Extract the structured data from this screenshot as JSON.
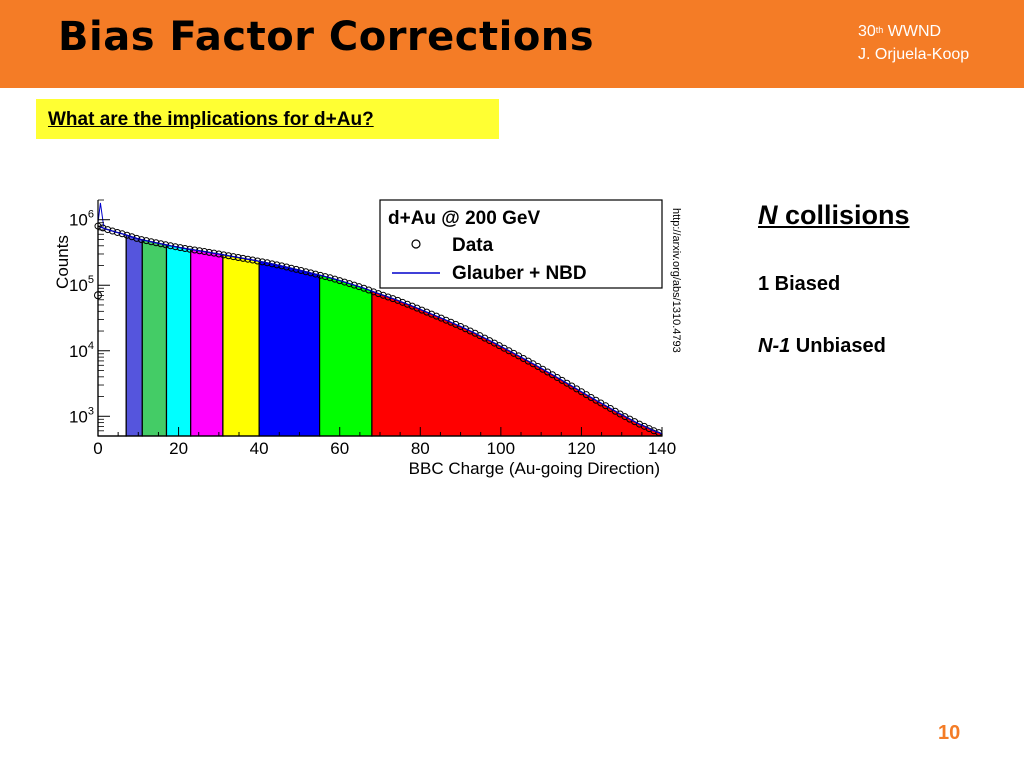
{
  "header": {
    "title": "Bias Factor Corrections",
    "conference_num": "30",
    "conference_sup": "th",
    "conference_name": "WWND",
    "author": "J. Orjuela-Koop"
  },
  "question": "What are the implications for d+Au?",
  "source_url": "http://arxiv.org/abs/1310.4793",
  "side": {
    "heading_italic": "N",
    "heading_rest": " collisions",
    "line1": "1 Biased",
    "line2_italic": "N-1",
    "line2_rest": " Unbiased"
  },
  "page_number": "10",
  "colors": {
    "header_bg": "#f47c26",
    "highlight": "#ffff33",
    "fit_line": "#0000cc"
  },
  "chart_data": {
    "type": "area",
    "legend": {
      "title": "d+Au @ 200 GeV",
      "entries": [
        "Data",
        "Glauber + NBD"
      ],
      "placement": "top-right"
    },
    "xlabel": "BBC Charge (Au-going Direction)",
    "ylabel": "Counts",
    "xlim": [
      0,
      140
    ],
    "ylim": [
      500,
      2000000
    ],
    "yscale": "log",
    "x_ticks": [
      0,
      20,
      40,
      60,
      80,
      100,
      120,
      140
    ],
    "y_ticks": [
      {
        "value": 1000,
        "base": "10",
        "exp": "3"
      },
      {
        "value": 10000,
        "base": "10",
        "exp": "4"
      },
      {
        "value": 100000,
        "base": "10",
        "exp": "5"
      },
      {
        "value": 1000000,
        "base": "10",
        "exp": "6"
      }
    ],
    "series": [
      {
        "x": [
          0,
          2,
          4,
          6,
          8,
          10,
          14,
          18,
          22,
          26,
          30,
          34,
          38,
          42,
          46,
          50,
          54,
          58,
          62,
          66,
          70,
          74,
          78,
          82,
          86,
          90,
          94,
          98,
          102,
          106,
          110,
          114,
          118,
          122,
          126,
          130,
          134,
          138,
          140
        ],
        "y": [
          800000,
          720000,
          660000,
          610000,
          560000,
          510000,
          450000,
          400000,
          360000,
          330000,
          300000,
          270000,
          245000,
          220000,
          195000,
          170000,
          148000,
          128000,
          108000,
          90000,
          73000,
          60000,
          48000,
          38000,
          30000,
          23500,
          18000,
          13500,
          10000,
          7400,
          5400,
          3900,
          2800,
          2000,
          1450,
          1050,
          780,
          600,
          540
        ]
      }
    ],
    "centrality_bins": [
      {
        "x0": 0,
        "x1": 7,
        "color": "#ffffff"
      },
      {
        "x0": 7,
        "x1": 11,
        "color": "#5555dd"
      },
      {
        "x0": 11,
        "x1": 17,
        "color": "#44cc66"
      },
      {
        "x0": 17,
        "x1": 23,
        "color": "#00ffff"
      },
      {
        "x0": 23,
        "x1": 31,
        "color": "#ff00ff"
      },
      {
        "x0": 31,
        "x1": 40,
        "color": "#ffff00"
      },
      {
        "x0": 40,
        "x1": 55,
        "color": "#0000ff"
      },
      {
        "x0": 55,
        "x1": 68,
        "color": "#00ff00"
      },
      {
        "x0": 68,
        "x1": 140,
        "color": "#ff0000"
      }
    ]
  }
}
